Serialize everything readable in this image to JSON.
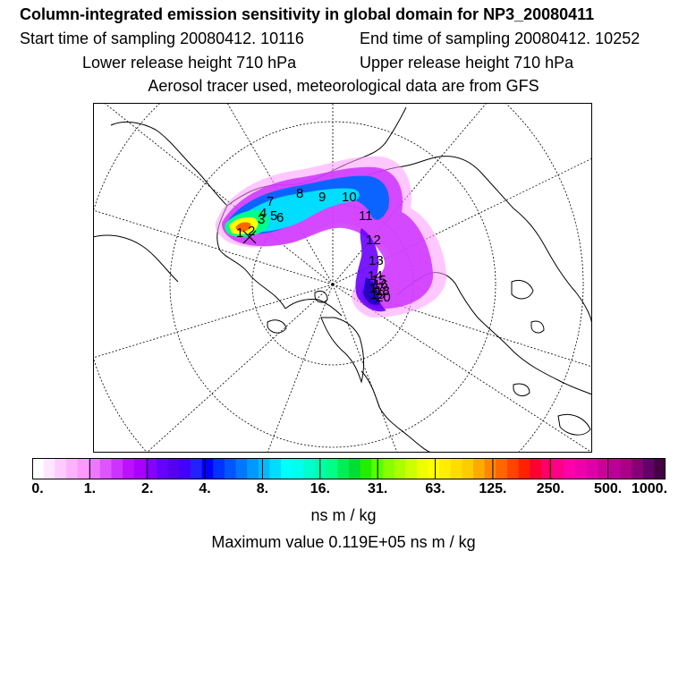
{
  "header": {
    "title": "Column-integrated emission sensitivity in global domain for NP3_20080411",
    "start_time": "Start time of sampling 20080412. 10116",
    "end_time": "End time of sampling 20080412. 10252",
    "lower_height": "Lower release height  710 hPa",
    "upper_height": "Upper release height  710 hPa",
    "tracer_note": "Aerosol tracer used, meteorological data are from GFS"
  },
  "map": {
    "projection": "polar-stereographic",
    "day_labels": [
      "1",
      "2",
      "3",
      "4",
      "5",
      "6",
      "7",
      "8",
      "9",
      "10",
      "11",
      "12",
      "13",
      "14",
      "15",
      "16",
      "17",
      "18",
      "19",
      "20"
    ],
    "plume_colors": [
      "#ff80ff",
      "#cc33ff",
      "#6a00ff",
      "#0066ff",
      "#00ddff",
      "#00ff88",
      "#ffff00",
      "#ff6600"
    ]
  },
  "colorbar": {
    "ticks": [
      "0.",
      "1.",
      "2.",
      "4.",
      "8.",
      "16.",
      "31.",
      "63.",
      "125.",
      "250.",
      "500.",
      "1000."
    ],
    "colors": [
      "#ffffff",
      "#ffe6ff",
      "#ffccff",
      "#ffb3ff",
      "#ff99ff",
      "#ee77ff",
      "#dd55ff",
      "#cc33ff",
      "#bb11ff",
      "#aa00ff",
      "#8800ff",
      "#6600ff",
      "#5500ee",
      "#4400ff",
      "#2222ff",
      "#0000ff",
      "#0033ff",
      "#0055ff",
      "#0077ff",
      "#0099ff",
      "#00bbff",
      "#00ddff",
      "#00ffff",
      "#00ffee",
      "#00ffcc",
      "#00ffaa",
      "#00ff88",
      "#00ee55",
      "#00dd33",
      "#22ee00",
      "#55ff00",
      "#88ff00",
      "#aaff00",
      "#ccff00",
      "#eeff00",
      "#ffff00",
      "#ffee00",
      "#ffdd00",
      "#ffcc00",
      "#ffaa00",
      "#ff8800",
      "#ff6600",
      "#ff4400",
      "#ff2200",
      "#ff0033",
      "#ff0066",
      "#ff0088",
      "#ff00aa",
      "#ee00aa",
      "#dd00aa",
      "#cc0099",
      "#bb0099",
      "#aa0088",
      "#880077",
      "#660066",
      "#440044"
    ],
    "unit": "ns m / kg",
    "max_value": "Maximum value  0.119E+05 ns m / kg"
  }
}
